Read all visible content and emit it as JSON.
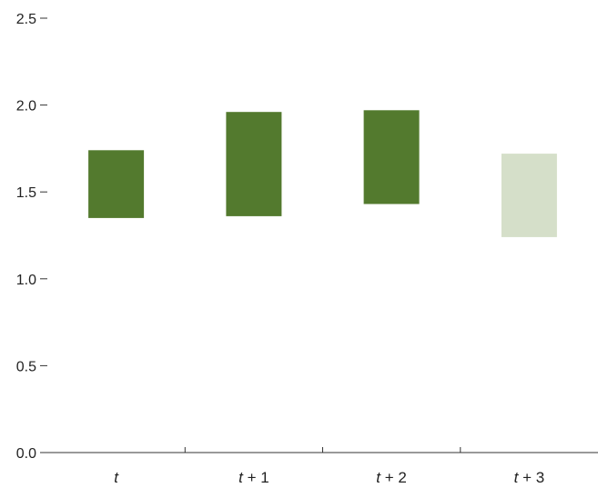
{
  "chart_data": {
    "type": "bar",
    "bar_style": "floating-range",
    "categories": [
      "t",
      "t + 1",
      "t + 2",
      "t + 3"
    ],
    "category_parts": [
      {
        "var": "t",
        "suffix": ""
      },
      {
        "var": "t",
        "suffix": " + 1"
      },
      {
        "var": "t",
        "suffix": " + 2"
      },
      {
        "var": "t",
        "suffix": " + 3"
      }
    ],
    "ranges": [
      {
        "low": 1.35,
        "high": 1.74
      },
      {
        "low": 1.36,
        "high": 1.96
      },
      {
        "low": 1.43,
        "high": 1.97
      },
      {
        "low": 1.24,
        "high": 1.72
      }
    ],
    "bar_colors": [
      "#537a2e",
      "#537a2e",
      "#537a2e",
      "#d5dfc9"
    ],
    "ylim": [
      0,
      2.5
    ],
    "yticks": [
      "0.0",
      "0.5",
      "1.0",
      "1.5",
      "2.0",
      "2.5"
    ],
    "grid": false,
    "title": "",
    "xlabel": "",
    "ylabel": ""
  }
}
